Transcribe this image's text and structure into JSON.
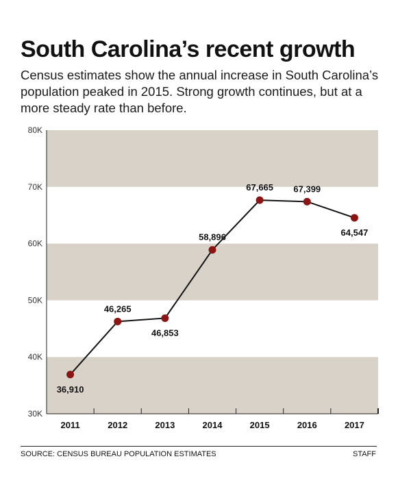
{
  "header": {
    "title": "South Carolina’s recent growth",
    "subtitle": "Census estimates show the annual increase in South Carolina’s population peaked in 2015. Strong growth continues, but at a more steady rate than before."
  },
  "footer": {
    "source": "SOURCE: CENSUS BUREAU POPULATION ESTIMATES",
    "credit": "STAFF"
  },
  "colors": {
    "band": "#d8d2c9",
    "marker": "#8b1414",
    "line": "#111111"
  },
  "chart_data": {
    "type": "line",
    "title": "",
    "xlabel": "",
    "ylabel": "",
    "categories": [
      "2011",
      "2012",
      "2013",
      "2014",
      "2015",
      "2016",
      "2017"
    ],
    "values": [
      36910,
      46265,
      46853,
      58896,
      67665,
      67399,
      64547
    ],
    "data_labels": [
      "36,910",
      "46,265",
      "46,853",
      "58,896",
      "67,665",
      "67,399",
      "64,547"
    ],
    "label_position": [
      "below",
      "above",
      "below",
      "above",
      "above",
      "above",
      "below"
    ],
    "ylim": [
      30000,
      80000
    ],
    "yticks": [
      30000,
      40000,
      50000,
      60000,
      70000,
      80000
    ],
    "ytick_labels": [
      "30K",
      "40K",
      "50K",
      "60K",
      "70K",
      "80K"
    ],
    "grid": "alternating horizontal bands",
    "legend": "none"
  }
}
